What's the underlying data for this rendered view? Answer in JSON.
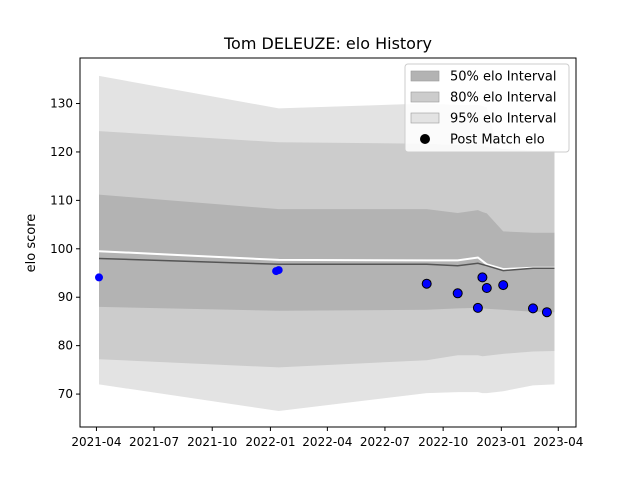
{
  "chart_data": {
    "type": "line",
    "title": "Tom DELEUZE: elo History",
    "xlabel": "",
    "ylabel": "elo score",
    "xlim": [
      "2021-03-06",
      "2023-04-29"
    ],
    "ylim": [
      63.2,
      139.4
    ],
    "grid": false,
    "legend_position": "top-right",
    "x_ticks": [
      "2021-04",
      "2021-07",
      "2021-10",
      "2022-01",
      "2022-04",
      "2022-07",
      "2022-10",
      "2023-01",
      "2023-04"
    ],
    "y_ticks": [
      70,
      80,
      90,
      100,
      110,
      120,
      130
    ],
    "legend": [
      {
        "label": "50% elo Interval",
        "kind": "patch",
        "color": "#b3b3b3"
      },
      {
        "label": "80% elo Interval",
        "kind": "patch",
        "color": "#cccccc"
      },
      {
        "label": "95% elo Interval",
        "kind": "patch",
        "color": "#e3e3e3"
      },
      {
        "label": "Post Match elo",
        "kind": "marker",
        "color": "#000000"
      }
    ],
    "bands": {
      "x": [
        "2021-04-05",
        "2022-01-14",
        "2022-09-05",
        "2022-10-24",
        "2022-11-25",
        "2022-12-02",
        "2022-12-09",
        "2023-01-04",
        "2023-02-20",
        "2023-03-26"
      ],
      "p50_upper": [
        111.2,
        108.2,
        108.2,
        107.4,
        108.0,
        107.6,
        107.3,
        103.6,
        103.3,
        103.3
      ],
      "p50_lower": [
        88.0,
        87.2,
        87.4,
        87.7,
        87.8,
        87.7,
        87.6,
        87.4,
        87.0,
        86.9
      ],
      "p80_upper": [
        124.3,
        122.0,
        121.7,
        121.4,
        121.5,
        121.3,
        121.0,
        120.6,
        120.3,
        120.3
      ],
      "p80_lower": [
        77.2,
        75.5,
        77.0,
        78.0,
        78.0,
        77.8,
        77.9,
        78.3,
        78.8,
        78.9
      ],
      "p95_upper": [
        135.7,
        129.0,
        130.0,
        129.7,
        129.7,
        129.5,
        129.2,
        116.8,
        116.5,
        116.5
      ],
      "p95_lower": [
        72.0,
        66.5,
        70.2,
        70.4,
        70.4,
        70.2,
        70.2,
        70.6,
        71.8,
        72.0
      ]
    },
    "series": [
      {
        "x": [
          "2021-04-05",
          "2022-01-14",
          "2022-09-05",
          "2022-10-24",
          "2022-11-25",
          "2022-12-09",
          "2023-01-04",
          "2023-02-20",
          "2023-03-26"
        ],
        "values": [
          99.5,
          97.7,
          97.6,
          97.6,
          98.2,
          96.8,
          95.8,
          96.1,
          96.1
        ],
        "color": "#ffffff"
      },
      {
        "x": [
          "2021-04-05",
          "2022-01-14",
          "2022-09-05",
          "2022-10-24",
          "2022-11-25",
          "2022-12-09",
          "2023-01-04",
          "2023-02-20",
          "2023-03-26"
        ],
        "values": [
          98.0,
          96.8,
          96.8,
          96.5,
          97.0,
          96.5,
          95.5,
          96.0,
          96.0
        ],
        "color": "#555555"
      }
    ],
    "points_early": [
      {
        "x": "2021-04-05",
        "y": 94.1
      },
      {
        "x": "2022-01-10",
        "y": 95.4
      },
      {
        "x": "2022-01-14",
        "y": 95.6
      }
    ],
    "points_post_match": [
      {
        "x": "2022-09-05",
        "y": 92.8
      },
      {
        "x": "2022-10-24",
        "y": 90.8
      },
      {
        "x": "2022-11-25",
        "y": 87.8
      },
      {
        "x": "2022-12-02",
        "y": 94.1
      },
      {
        "x": "2022-12-09",
        "y": 91.9
      },
      {
        "x": "2023-01-04",
        "y": 92.5
      },
      {
        "x": "2023-02-20",
        "y": 87.7
      },
      {
        "x": "2023-03-14",
        "y": 86.9
      }
    ]
  }
}
